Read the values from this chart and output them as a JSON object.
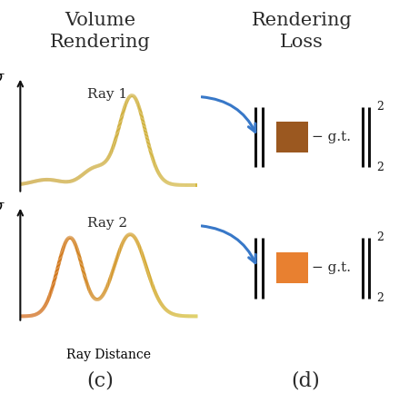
{
  "title_left": "Volume\nRendering",
  "title_right": "Rendering\nLoss",
  "label_c": "(c)",
  "label_d": "(d)",
  "ray1_label": "Ray 1",
  "ray2_label": "Ray 2",
  "sigma_label": "σ",
  "ray_distance_label": "Ray Distance",
  "gt_text": "− g.t.",
  "color_ray1_start": "#c8a030",
  "color_ray1_mid": "#b06020",
  "color_ray1_end": "#d4b840",
  "color_ray2_start": "#d06010",
  "color_ray2_end": "#d4c030",
  "color_square1": "#9B5820",
  "color_square2": "#E88030",
  "arrow_color": "#3878c8",
  "title_color": "#2a2a2a",
  "background_color": "#ffffff",
  "norm_color": "#111111",
  "axes_color": "#111111"
}
